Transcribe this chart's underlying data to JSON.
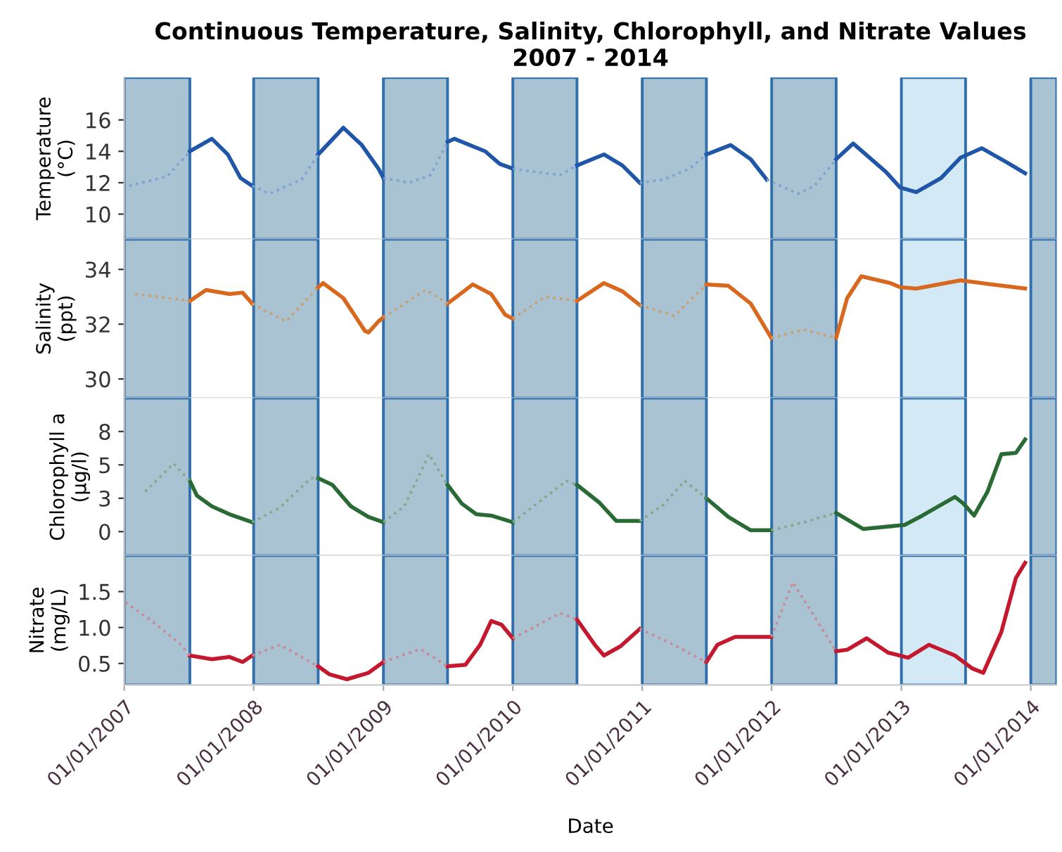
{
  "chart_data": [
    {
      "type": "line",
      "title": "Continuous Temperature, Salinity, Chlorophyll, and Nitrate Values\n2007 - 2014",
      "ylabel": "Temperature\n(°C)",
      "tick_labels": "y",
      "xlim": [
        "2007-01-01",
        "2014-03-15"
      ],
      "ylim": [
        8.4,
        18.7
      ],
      "yticks": [
        10,
        12,
        14,
        16
      ],
      "bands": [
        {
          "axis": "x",
          "from": "2007-01-01",
          "to": "2007-07-05",
          "color": "#a9c3d3"
        },
        {
          "axis": "x",
          "from": "2008-01-01",
          "to": "2008-07-01",
          "color": "#a9c3d3"
        },
        {
          "axis": "x",
          "from": "2009-01-01",
          "to": "2009-07-01",
          "color": "#a9c3d3"
        },
        {
          "axis": "x",
          "from": "2010-01-01",
          "to": "2010-07-01",
          "color": "#a9c3d3"
        },
        {
          "axis": "x",
          "from": "2011-01-01",
          "to": "2011-07-01",
          "color": "#a9c3d3"
        },
        {
          "axis": "x",
          "from": "2012-01-01",
          "to": "2012-07-01",
          "color": "#a9c3d3"
        },
        {
          "axis": "x",
          "from": "2013-01-01",
          "to": "2013-07-01",
          "color": "#d3e9f6"
        },
        {
          "axis": "x",
          "from": "2014-01-01",
          "to": "2014-03-15",
          "color": "#a9c3d3"
        }
      ],
      "series": [
        {
          "color": "#1f56a8",
          "line_style": "solid",
          "x": [
            "2007-07-05",
            "2007-09-05",
            "2007-10-20",
            "2007-11-25",
            "2007-12-28",
            "2008-04-01",
            "2008-07-01",
            "2008-09-10",
            "2008-11-01",
            "2008-12-18",
            "2009-01-01",
            "2009-04-01",
            "2009-07-01",
            "2009-07-20",
            "2009-10-15",
            "2009-11-25",
            "2010-01-01",
            "2010-04-01",
            "2010-07-01",
            "2010-09-15",
            "2010-11-06",
            "2010-12-25",
            "2011-04-01",
            "2011-07-01",
            "2011-09-07",
            "2011-11-03",
            "2011-12-18",
            "2012-04-01",
            "2012-07-01",
            "2012-08-18",
            "2012-11-18",
            "2012-12-28",
            "2013-02-12",
            "2013-04-23",
            "2013-06-17",
            "2013-08-16",
            "2013-10-25",
            "2013-12-16"
          ],
          "values": [
            14.0,
            14.8,
            13.8,
            12.3,
            11.8,
            null,
            13.8,
            15.5,
            14.4,
            12.9,
            12.3,
            null,
            14.6,
            14.8,
            14.0,
            13.2,
            12.9,
            null,
            13.1,
            13.8,
            13.1,
            12.0,
            null,
            13.8,
            14.4,
            13.5,
            12.2,
            null,
            13.5,
            14.5,
            12.7,
            11.7,
            11.4,
            12.3,
            13.6,
            14.2,
            13.3,
            12.6
          ]
        },
        {
          "color": "#7fa3cf",
          "line_style": "dotted",
          "x": [
            "2007-01-15",
            "2007-05-01",
            "2007-06-20",
            "2007-07-05",
            "2007-10-01",
            "2007-12-28",
            "2008-02-15",
            "2008-05-15",
            "2008-07-01",
            "2008-10-01",
            "2009-01-01",
            "2009-03-15",
            "2009-05-15",
            "2009-07-01",
            "2009-10-01",
            "2010-01-01",
            "2010-03-01",
            "2010-05-15",
            "2010-07-01",
            "2010-10-01",
            "2010-12-25",
            "2011-03-01",
            "2011-05-15",
            "2011-07-01",
            "2011-10-01",
            "2011-12-18",
            "2012-03-15",
            "2012-05-01",
            "2012-07-01"
          ],
          "values": [
            11.8,
            12.4,
            13.6,
            14.0,
            null,
            11.8,
            11.3,
            12.2,
            13.8,
            null,
            12.3,
            12.0,
            12.5,
            14.6,
            null,
            12.9,
            12.7,
            12.5,
            13.1,
            null,
            12.0,
            12.2,
            12.9,
            13.8,
            null,
            12.2,
            11.3,
            11.8,
            13.5
          ]
        }
      ]
    },
    {
      "type": "line",
      "ylabel": "Salinity\n(ppt)",
      "tick_labels": "y",
      "xlim": [
        "2007-01-01",
        "2014-03-15"
      ],
      "ylim": [
        29.3,
        35.1
      ],
      "yticks": [
        30,
        32,
        34
      ],
      "bands": [
        {
          "axis": "x",
          "from": "2007-01-01",
          "to": "2007-07-05",
          "color": "#a9c3d3"
        },
        {
          "axis": "x",
          "from": "2008-01-01",
          "to": "2008-07-01",
          "color": "#a9c3d3"
        },
        {
          "axis": "x",
          "from": "2009-01-01",
          "to": "2009-07-01",
          "color": "#a9c3d3"
        },
        {
          "axis": "x",
          "from": "2010-01-01",
          "to": "2010-07-01",
          "color": "#a9c3d3"
        },
        {
          "axis": "x",
          "from": "2011-01-01",
          "to": "2011-07-01",
          "color": "#a9c3d3"
        },
        {
          "axis": "x",
          "from": "2012-01-01",
          "to": "2012-07-01",
          "color": "#a9c3d3"
        },
        {
          "axis": "x",
          "from": "2013-01-01",
          "to": "2013-07-01",
          "color": "#d3e9f6"
        },
        {
          "axis": "x",
          "from": "2014-01-01",
          "to": "2014-03-15",
          "color": "#a9c3d3"
        }
      ],
      "series": [
        {
          "color": "#d9681f",
          "line_style": "solid",
          "x": [
            "2007-07-05",
            "2007-08-20",
            "2007-10-25",
            "2007-12-01",
            "2007-12-28",
            "2008-04-01",
            "2008-07-01",
            "2008-07-15",
            "2008-09-10",
            "2008-11-10",
            "2008-11-20",
            "2008-12-18",
            "2009-01-01",
            "2009-04-01",
            "2009-07-01",
            "2009-09-10",
            "2009-11-01",
            "2009-12-10",
            "2010-01-01",
            "2010-04-01",
            "2010-07-01",
            "2010-09-15",
            "2010-11-06",
            "2010-12-25",
            "2011-04-01",
            "2011-07-01",
            "2011-09-01",
            "2011-11-03",
            "2011-12-31",
            "2012-04-01",
            "2012-07-01",
            "2012-08-01",
            "2012-09-10",
            "2012-12-01",
            "2012-12-28",
            "2013-02-12",
            "2013-06-17",
            "2013-09-15",
            "2013-12-16"
          ],
          "values": [
            32.85,
            33.25,
            33.1,
            33.15,
            32.75,
            null,
            33.35,
            33.5,
            32.95,
            31.75,
            31.7,
            32.1,
            32.25,
            null,
            32.75,
            33.45,
            33.1,
            32.35,
            32.2,
            null,
            32.85,
            33.5,
            33.2,
            32.7,
            null,
            33.45,
            33.4,
            32.75,
            31.5,
            null,
            31.5,
            32.95,
            33.75,
            33.5,
            33.35,
            33.3,
            33.6,
            33.45,
            33.3
          ]
        },
        {
          "color": "#c9a070",
          "line_style": "dotted",
          "x": [
            "2007-02-01",
            "2007-07-05",
            "2007-10-01",
            "2007-12-28",
            "2008-04-01",
            "2008-07-01",
            "2008-10-01",
            "2009-01-01",
            "2009-05-01",
            "2009-07-01",
            "2009-10-01",
            "2010-01-01",
            "2010-04-01",
            "2010-07-01",
            "2010-10-01",
            "2010-12-25",
            "2011-04-01",
            "2011-07-01",
            "2011-10-01",
            "2011-12-31",
            "2012-04-01",
            "2012-07-01"
          ],
          "values": [
            33.1,
            32.85,
            null,
            32.75,
            32.1,
            33.35,
            null,
            32.25,
            33.25,
            32.75,
            null,
            32.2,
            33.0,
            32.85,
            null,
            32.7,
            32.3,
            33.45,
            null,
            31.5,
            31.8,
            31.5
          ]
        }
      ]
    },
    {
      "type": "line",
      "ylabel": "Chlorophyll a\n(µg/l)",
      "tick_labels": "y",
      "xlim": [
        "2007-01-01",
        "2014-03-15"
      ],
      "ylim": [
        -1.8,
        10.0
      ],
      "yticks": [
        0,
        {
          "value": 2.5,
          "label": "3"
        },
        5,
        {
          "value": 7.5,
          "label": "8"
        }
      ],
      "bands": [
        {
          "axis": "x",
          "from": "2007-01-01",
          "to": "2007-07-05",
          "color": "#a9c3d3"
        },
        {
          "axis": "x",
          "from": "2008-01-01",
          "to": "2008-07-01",
          "color": "#a9c3d3"
        },
        {
          "axis": "x",
          "from": "2009-01-01",
          "to": "2009-07-01",
          "color": "#a9c3d3"
        },
        {
          "axis": "x",
          "from": "2010-01-01",
          "to": "2010-07-01",
          "color": "#a9c3d3"
        },
        {
          "axis": "x",
          "from": "2011-01-01",
          "to": "2011-07-01",
          "color": "#a9c3d3"
        },
        {
          "axis": "x",
          "from": "2012-01-01",
          "to": "2012-07-01",
          "color": "#a9c3d3"
        },
        {
          "axis": "x",
          "from": "2013-01-01",
          "to": "2013-07-01",
          "color": "#d3e9f6"
        },
        {
          "axis": "x",
          "from": "2014-01-01",
          "to": "2014-03-15",
          "color": "#a9c3d3"
        }
      ],
      "series": [
        {
          "color": "#2a6b35",
          "line_style": "solid",
          "x": [
            "2007-07-05",
            "2007-07-25",
            "2007-09-05",
            "2007-10-25",
            "2007-12-28",
            "2008-04-01",
            "2008-07-01",
            "2008-08-10",
            "2008-10-01",
            "2008-11-20",
            "2009-01-01",
            "2009-04-01",
            "2009-07-01",
            "2009-08-10",
            "2009-09-20",
            "2009-11-01",
            "2010-01-01",
            "2010-04-01",
            "2010-07-01",
            "2010-09-01",
            "2010-10-20",
            "2010-12-25",
            "2011-04-01",
            "2011-07-01",
            "2011-09-01",
            "2011-11-03",
            "2011-12-31",
            "2012-04-01",
            "2012-07-01",
            "2012-09-15",
            "2013-01-10",
            "2013-03-01",
            "2013-06-01",
            "2013-06-25",
            "2013-07-25",
            "2013-09-01",
            "2013-10-10",
            "2013-11-20",
            "2013-12-16"
          ],
          "values": [
            3.8,
            2.7,
            1.9,
            1.3,
            0.7,
            null,
            4.0,
            3.5,
            1.9,
            1.1,
            0.7,
            null,
            3.5,
            2.1,
            1.3,
            1.2,
            0.7,
            null,
            3.5,
            2.2,
            0.8,
            0.8,
            null,
            2.5,
            1.1,
            0.1,
            0.1,
            null,
            1.4,
            0.2,
            0.5,
            1.2,
            2.6,
            2.1,
            1.2,
            3.0,
            5.8,
            5.9,
            6.9
          ]
        },
        {
          "color": "#86a88a",
          "line_style": "dotted",
          "x": [
            "2007-03-01",
            "2007-05-20",
            "2007-07-05",
            "2007-10-01",
            "2007-12-28",
            "2008-03-15",
            "2008-06-10",
            "2008-07-01",
            "2008-10-01",
            "2009-01-01",
            "2009-03-01",
            "2009-05-10",
            "2009-07-01",
            "2009-10-01",
            "2010-01-01",
            "2010-03-15",
            "2010-06-01",
            "2010-07-01",
            "2010-10-01",
            "2010-12-25",
            "2011-03-01",
            "2011-05-01",
            "2011-07-01",
            "2011-10-01",
            "2011-12-31",
            "2012-04-01",
            "2012-07-01"
          ],
          "values": [
            3.0,
            5.1,
            3.8,
            null,
            0.7,
            1.8,
            4.0,
            4.0,
            null,
            0.7,
            1.9,
            5.8,
            3.5,
            null,
            0.7,
            2.2,
            3.8,
            3.5,
            null,
            0.8,
            2.0,
            3.8,
            2.5,
            null,
            0.1,
            0.7,
            1.4
          ]
        }
      ]
    },
    {
      "type": "line",
      "ylabel": "Nitrate\n(mg/L)",
      "xlabel": "Date",
      "xlim": [
        "2007-01-01",
        "2014-03-15"
      ],
      "xticks": [
        {
          "value": "2007-01-01",
          "label": "01/01/2007"
        },
        {
          "value": "2008-01-01",
          "label": "01/01/2008"
        },
        {
          "value": "2009-01-01",
          "label": "01/01/2009"
        },
        {
          "value": "2010-01-01",
          "label": "01/01/2010"
        },
        {
          "value": "2011-01-01",
          "label": "01/01/2011"
        },
        {
          "value": "2012-01-01",
          "label": "01/01/2012"
        },
        {
          "value": "2013-01-01",
          "label": "01/01/2013"
        },
        {
          "value": "2014-01-01",
          "label": "01/01/2014"
        }
      ],
      "ylim": [
        0.2,
        2.0
      ],
      "yticks": [
        0.5,
        {
          "value": 1.0,
          "label": "1.0"
        },
        1.5
      ],
      "bands": [
        {
          "axis": "x",
          "from": "2007-01-01",
          "to": "2007-07-05",
          "color": "#a9c3d3"
        },
        {
          "axis": "x",
          "from": "2008-01-01",
          "to": "2008-07-01",
          "color": "#a9c3d3"
        },
        {
          "axis": "x",
          "from": "2009-01-01",
          "to": "2009-07-01",
          "color": "#a9c3d3"
        },
        {
          "axis": "x",
          "from": "2010-01-01",
          "to": "2010-07-01",
          "color": "#a9c3d3"
        },
        {
          "axis": "x",
          "from": "2011-01-01",
          "to": "2011-07-01",
          "color": "#a9c3d3"
        },
        {
          "axis": "x",
          "from": "2012-01-01",
          "to": "2012-07-01",
          "color": "#a9c3d3"
        },
        {
          "axis": "x",
          "from": "2013-01-01",
          "to": "2013-07-01",
          "color": "#d3e9f6"
        },
        {
          "axis": "x",
          "from": "2014-01-01",
          "to": "2014-03-15",
          "color": "#a9c3d3"
        }
      ],
      "series": [
        {
          "color": "#c4182e",
          "line_style": "solid",
          "x": [
            "2007-07-05",
            "2007-09-05",
            "2007-10-25",
            "2007-12-01",
            "2007-12-28",
            "2008-04-01",
            "2008-07-01",
            "2008-08-01",
            "2008-09-20",
            "2008-11-20",
            "2009-01-01",
            "2009-04-01",
            "2009-07-01",
            "2009-08-20",
            "2009-10-01",
            "2009-11-01",
            "2009-11-30",
            "2010-01-01",
            "2010-04-01",
            "2010-07-01",
            "2010-08-20",
            "2010-09-15",
            "2010-11-01",
            "2010-12-25",
            "2011-04-01",
            "2011-07-01",
            "2011-08-01",
            "2011-09-20",
            "2011-12-31",
            "2012-04-01",
            "2012-07-01",
            "2012-08-01",
            "2012-09-25",
            "2012-11-25",
            "2013-01-20",
            "2013-03-20",
            "2013-06-01",
            "2013-07-20",
            "2013-08-20",
            "2013-10-10",
            "2013-11-20",
            "2013-12-16"
          ],
          "values": [
            0.61,
            0.56,
            0.59,
            0.52,
            0.61,
            null,
            0.46,
            0.35,
            0.28,
            0.37,
            0.52,
            null,
            0.46,
            0.48,
            0.76,
            1.09,
            1.04,
            0.85,
            null,
            1.11,
            0.76,
            0.61,
            0.74,
            0.98,
            null,
            0.52,
            0.76,
            0.87,
            0.87,
            null,
            0.67,
            0.69,
            0.85,
            0.65,
            0.58,
            0.76,
            0.61,
            0.43,
            0.37,
            0.94,
            1.69,
            1.9
          ]
        },
        {
          "color": "#c88a96",
          "line_style": "dotted",
          "x": [
            "2007-01-05",
            "2007-03-25",
            "2007-06-10",
            "2007-07-05",
            "2007-10-01",
            "2007-12-28",
            "2008-03-15",
            "2008-07-01",
            "2008-10-01",
            "2009-01-01",
            "2009-04-15",
            "2009-07-01",
            "2009-10-01",
            "2010-01-01",
            "2010-05-15",
            "2010-07-01",
            "2010-10-01",
            "2010-12-25",
            "2011-03-15",
            "2011-07-01",
            "2011-10-01",
            "2011-12-31",
            "2012-03-01",
            "2012-07-01"
          ],
          "values": [
            1.35,
            1.07,
            0.76,
            0.61,
            null,
            0.61,
            0.76,
            0.46,
            null,
            0.52,
            0.7,
            0.46,
            null,
            0.85,
            1.2,
            1.11,
            null,
            0.98,
            0.8,
            0.52,
            null,
            0.87,
            1.63,
            0.67
          ]
        }
      ]
    }
  ]
}
